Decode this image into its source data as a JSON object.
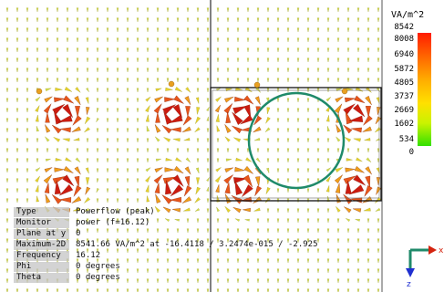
{
  "legend": {
    "unit": "VA/m^2",
    "ticks": [
      "8542",
      "8008",
      "6940",
      "5872",
      "4805",
      "3737",
      "2669",
      "1602",
      "534",
      "0"
    ]
  },
  "info": [
    {
      "label": "Type",
      "value": "Powerflow (peak)"
    },
    {
      "label": "Monitor",
      "value": "power (f=16.12)"
    },
    {
      "label": "Plane at y",
      "value": "0"
    },
    {
      "label": "Maximum-2D",
      "value": "8541.66 VA/m^2 at -16.4118 / 3.2474e-015 / -2.925"
    },
    {
      "label": "Frequency",
      "value": "16.12"
    },
    {
      "label": "Phi",
      "value": "0 degrees"
    },
    {
      "label": "Theta",
      "value": "0 degrees"
    }
  ],
  "axes": {
    "x_label": "x",
    "z_label": "z"
  },
  "colors": {
    "circle": "#1f8a6a",
    "high": "#d42410",
    "mid": "#f0a018",
    "low": "#e8e84a"
  }
}
